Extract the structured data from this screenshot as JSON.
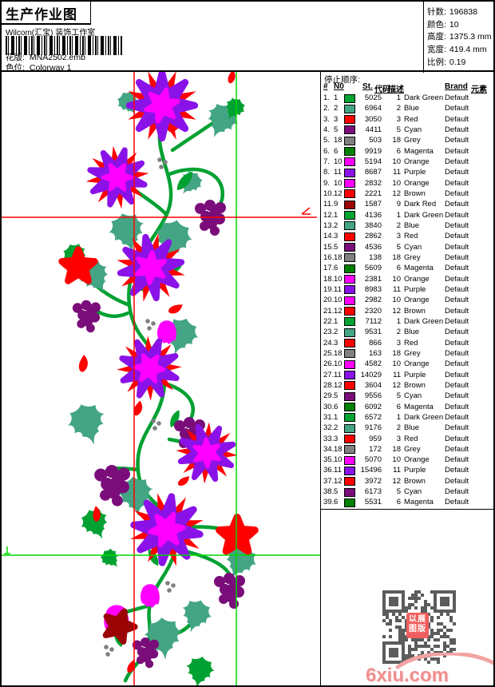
{
  "header": {
    "title": "生产作业图",
    "company": "Wilcom(汇宝) 装饰工作室",
    "pattern_label": "花版:",
    "pattern_value": "MNA2502.emb",
    "colorway_label": "色位:",
    "colorway_value": "Colorway 1",
    "info": [
      {
        "label": "针数:",
        "value": "196838"
      },
      {
        "label": "颜色:",
        "value": "10"
      },
      {
        "label": "高度:",
        "value": "1375.3 mm"
      },
      {
        "label": "宽度:",
        "value": "419.4 mm"
      },
      {
        "label": "比例:",
        "value": "0.19"
      }
    ]
  },
  "stop_sequence": {
    "title": "停止顺序:",
    "columns": {
      "seq": "#",
      "n0": "N0",
      "st": "St.",
      "code": "代码",
      "desc": "描述",
      "brand": "Brand",
      "element": "元素"
    },
    "rows": [
      {
        "seq": "1.",
        "n0": "1",
        "color": "#00a432",
        "st": "5025",
        "code": "1",
        "desc": "Dark Green",
        "brand": "Default",
        "element": ""
      },
      {
        "seq": "2.",
        "n0": "2",
        "color": "#43a583",
        "st": "6964",
        "code": "2",
        "desc": "Blue",
        "brand": "Default",
        "element": ""
      },
      {
        "seq": "3.",
        "n0": "3",
        "color": "#ff0000",
        "st": "3050",
        "code": "3",
        "desc": "Red",
        "brand": "Default",
        "element": ""
      },
      {
        "seq": "4.",
        "n0": "5",
        "color": "#7a0d7a",
        "st": "4411",
        "code": "5",
        "desc": "Cyan",
        "brand": "Default",
        "element": ""
      },
      {
        "seq": "5.",
        "n0": "18",
        "color": "#808080",
        "st": "503",
        "code": "18",
        "desc": "Grey",
        "brand": "Default",
        "element": ""
      },
      {
        "seq": "6.",
        "n0": "6",
        "color": "#008000",
        "st": "9919",
        "code": "6",
        "desc": "Magenta",
        "brand": "Default",
        "element": ""
      },
      {
        "seq": "7.",
        "n0": "10",
        "color": "#ff00ff",
        "st": "5194",
        "code": "10",
        "desc": "Orange",
        "brand": "Default",
        "element": ""
      },
      {
        "seq": "8.",
        "n0": "11",
        "color": "#8a12e8",
        "st": "8687",
        "code": "11",
        "desc": "Purple",
        "brand": "Default",
        "element": ""
      },
      {
        "seq": "9.",
        "n0": "10",
        "color": "#ff00ff",
        "st": "2832",
        "code": "10",
        "desc": "Orange",
        "brand": "Default",
        "element": ""
      },
      {
        "seq": "10.",
        "n0": "12",
        "color": "#ff0000",
        "st": "2221",
        "code": "12",
        "desc": "Brown",
        "brand": "Default",
        "element": ""
      },
      {
        "seq": "11.",
        "n0": "9",
        "color": "#9b0404",
        "st": "1587",
        "code": "9",
        "desc": "Dark Red",
        "brand": "Default",
        "element": ""
      },
      {
        "seq": "12.",
        "n0": "1",
        "color": "#00a432",
        "st": "4136",
        "code": "1",
        "desc": "Dark Green",
        "brand": "Default",
        "element": ""
      },
      {
        "seq": "13.",
        "n0": "2",
        "color": "#43a583",
        "st": "3840",
        "code": "2",
        "desc": "Blue",
        "brand": "Default",
        "element": ""
      },
      {
        "seq": "14.",
        "n0": "3",
        "color": "#ff0000",
        "st": "2862",
        "code": "3",
        "desc": "Red",
        "brand": "Default",
        "element": ""
      },
      {
        "seq": "15.",
        "n0": "5",
        "color": "#7a0d7a",
        "st": "4536",
        "code": "5",
        "desc": "Cyan",
        "brand": "Default",
        "element": ""
      },
      {
        "seq": "16.",
        "n0": "18",
        "color": "#808080",
        "st": "138",
        "code": "18",
        "desc": "Grey",
        "brand": "Default",
        "element": ""
      },
      {
        "seq": "17.",
        "n0": "6",
        "color": "#008000",
        "st": "5609",
        "code": "6",
        "desc": "Magenta",
        "brand": "Default",
        "element": ""
      },
      {
        "seq": "18.",
        "n0": "10",
        "color": "#ff00ff",
        "st": "2381",
        "code": "10",
        "desc": "Orange",
        "brand": "Default",
        "element": ""
      },
      {
        "seq": "19.",
        "n0": "11",
        "color": "#8a12e8",
        "st": "8983",
        "code": "11",
        "desc": "Purple",
        "brand": "Default",
        "element": ""
      },
      {
        "seq": "20.",
        "n0": "10",
        "color": "#ff00ff",
        "st": "2982",
        "code": "10",
        "desc": "Orange",
        "brand": "Default",
        "element": ""
      },
      {
        "seq": "21.",
        "n0": "12",
        "color": "#ff0000",
        "st": "2320",
        "code": "12",
        "desc": "Brown",
        "brand": "Default",
        "element": ""
      },
      {
        "seq": "22.",
        "n0": "1",
        "color": "#00a432",
        "st": "7112",
        "code": "1",
        "desc": "Dark Green",
        "brand": "Default",
        "element": ""
      },
      {
        "seq": "23.",
        "n0": "2",
        "color": "#43a583",
        "st": "9531",
        "code": "2",
        "desc": "Blue",
        "brand": "Default",
        "element": ""
      },
      {
        "seq": "24.",
        "n0": "3",
        "color": "#ff0000",
        "st": "866",
        "code": "3",
        "desc": "Red",
        "brand": "Default",
        "element": ""
      },
      {
        "seq": "25.",
        "n0": "18",
        "color": "#808080",
        "st": "163",
        "code": "18",
        "desc": "Grey",
        "brand": "Default",
        "element": ""
      },
      {
        "seq": "26.",
        "n0": "10",
        "color": "#ff00ff",
        "st": "4582",
        "code": "10",
        "desc": "Orange",
        "brand": "Default",
        "element": ""
      },
      {
        "seq": "27.",
        "n0": "11",
        "color": "#8a12e8",
        "st": "14029",
        "code": "11",
        "desc": "Purple",
        "brand": "Default",
        "element": ""
      },
      {
        "seq": "28.",
        "n0": "12",
        "color": "#ff0000",
        "st": "3604",
        "code": "12",
        "desc": "Brown",
        "brand": "Default",
        "element": ""
      },
      {
        "seq": "29.",
        "n0": "5",
        "color": "#7a0d7a",
        "st": "9556",
        "code": "5",
        "desc": "Cyan",
        "brand": "Default",
        "element": ""
      },
      {
        "seq": "30.",
        "n0": "6",
        "color": "#008000",
        "st": "6092",
        "code": "6",
        "desc": "Magenta",
        "brand": "Default",
        "element": ""
      },
      {
        "seq": "31.",
        "n0": "1",
        "color": "#00a432",
        "st": "6572",
        "code": "1",
        "desc": "Dark Green",
        "brand": "Default",
        "element": ""
      },
      {
        "seq": "32.",
        "n0": "2",
        "color": "#43a583",
        "st": "9176",
        "code": "2",
        "desc": "Blue",
        "brand": "Default",
        "element": ""
      },
      {
        "seq": "33.",
        "n0": "3",
        "color": "#ff0000",
        "st": "959",
        "code": "3",
        "desc": "Red",
        "brand": "Default",
        "element": ""
      },
      {
        "seq": "34.",
        "n0": "18",
        "color": "#808080",
        "st": "172",
        "code": "18",
        "desc": "Grey",
        "brand": "Default",
        "element": ""
      },
      {
        "seq": "35.",
        "n0": "10",
        "color": "#ff00ff",
        "st": "5070",
        "code": "10",
        "desc": "Orange",
        "brand": "Default",
        "element": ""
      },
      {
        "seq": "36.",
        "n0": "11",
        "color": "#8a12e8",
        "st": "15496",
        "code": "11",
        "desc": "Purple",
        "brand": "Default",
        "element": ""
      },
      {
        "seq": "37.",
        "n0": "12",
        "color": "#ff0000",
        "st": "3972",
        "code": "12",
        "desc": "Brown",
        "brand": "Default",
        "element": ""
      },
      {
        "seq": "38.",
        "n0": "5",
        "color": "#7a0d7a",
        "st": "6173",
        "code": "5",
        "desc": "Cyan",
        "brand": "Default",
        "element": ""
      },
      {
        "seq": "39.",
        "n0": "6",
        "color": "#008000",
        "st": "5531",
        "code": "6",
        "desc": "Magenta",
        "brand": "Default",
        "element": ""
      }
    ]
  },
  "watermark": {
    "site": "6xiu.com",
    "stamp_line1": "以展",
    "stamp_line2": "图版",
    "stamp_color": "#ef5e5e",
    "qr_color": "#5c5c5c",
    "site_color": "#ef8f8f"
  },
  "design": {
    "palette": {
      "vine_green": "#00a132",
      "leaf_teal": "#43a583",
      "petal_violet": "#8a12e8",
      "center_magenta": "#ff00ff",
      "accent_red": "#ff0000",
      "grape_purple": "#7a0d7a",
      "dark_red": "#9b0404",
      "grey": "#808080"
    },
    "guides": {
      "red": "#ff0000",
      "green": "#00d800"
    }
  }
}
